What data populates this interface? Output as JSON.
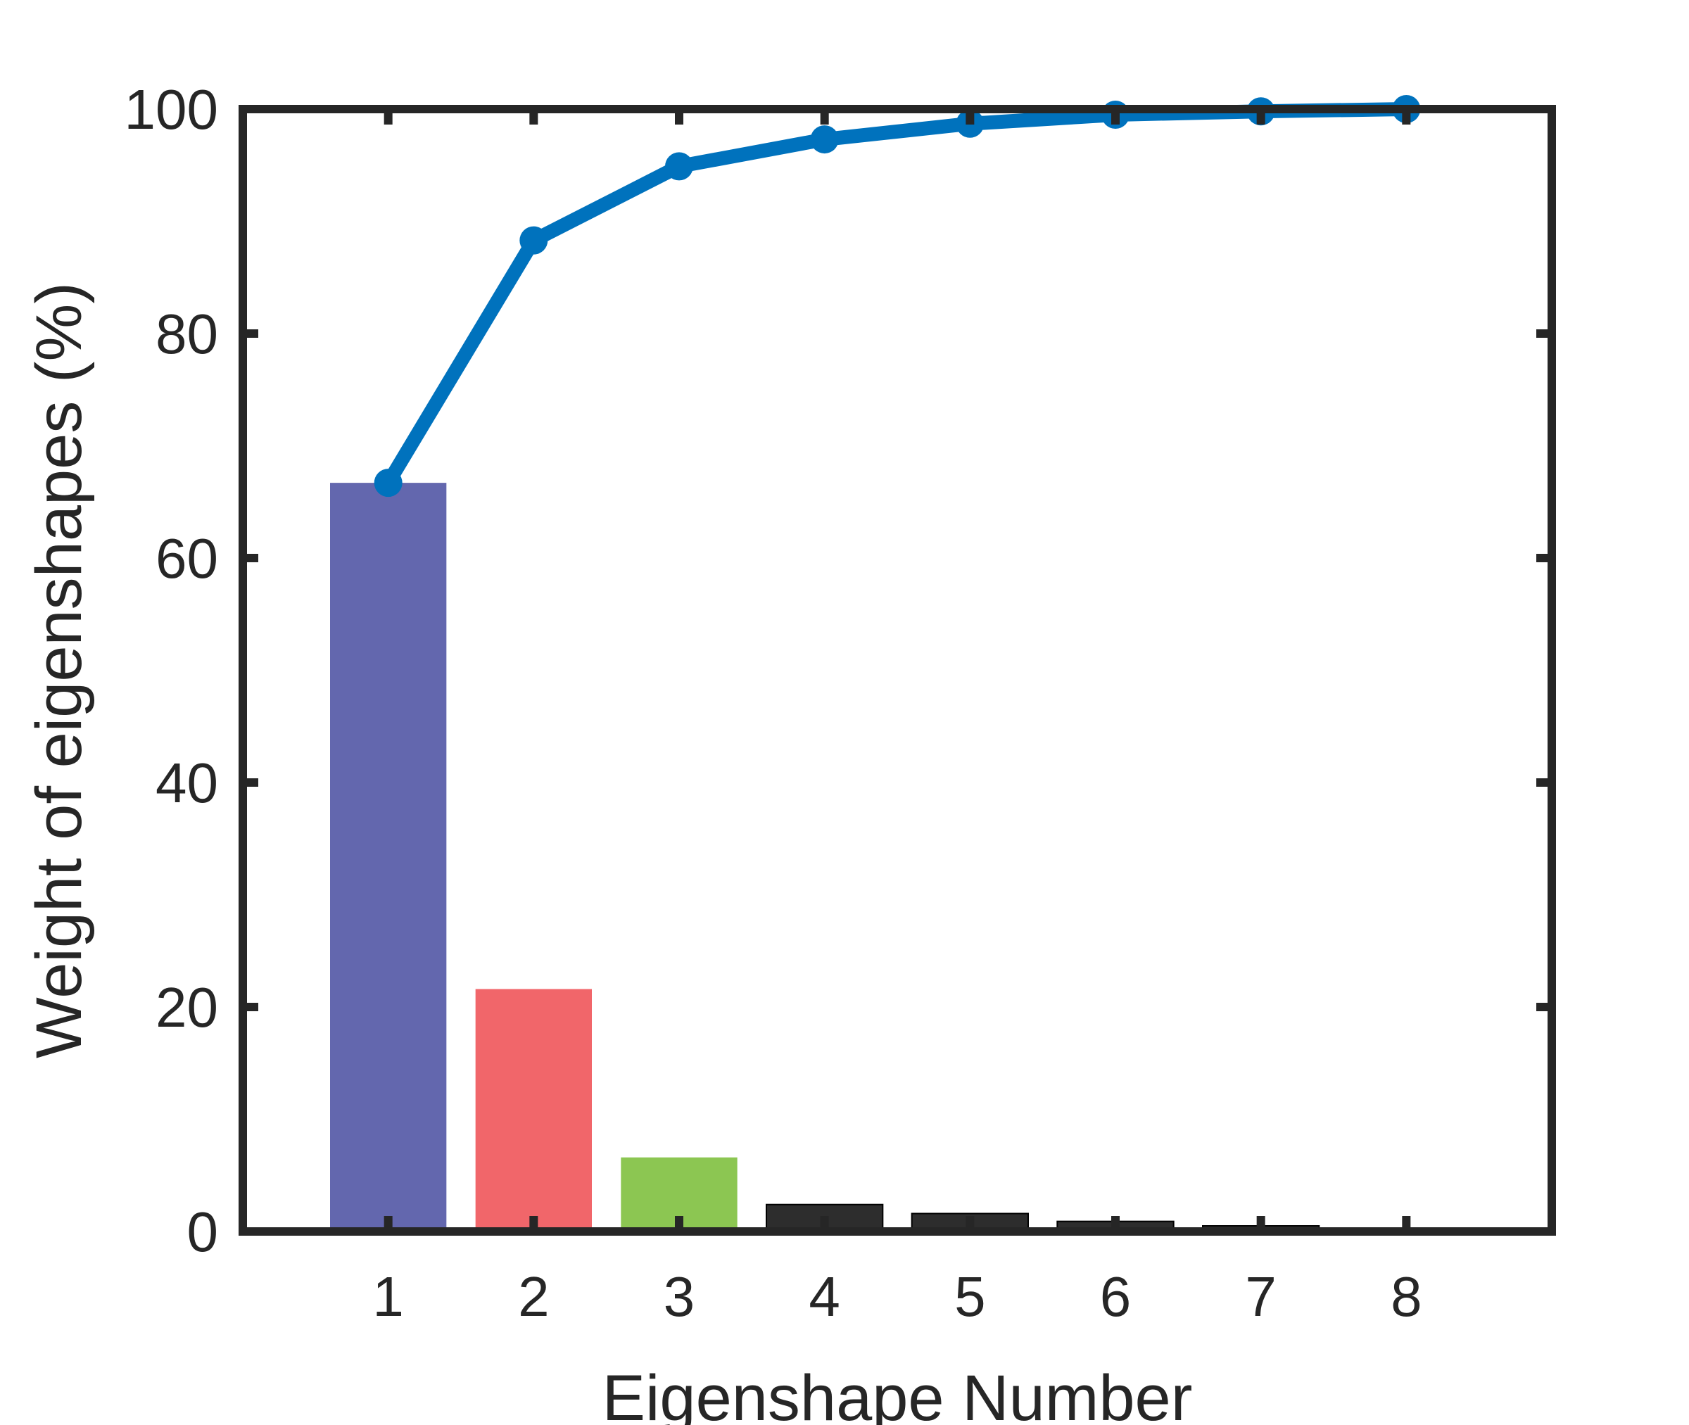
{
  "chart_data": {
    "type": "bar",
    "xlabel": "Eigenshape Number",
    "ylabel": "Weight of eigenshapes (%)",
    "categories": [
      "1",
      "2",
      "3",
      "4",
      "5",
      "6",
      "7",
      "8"
    ],
    "xlim": [
      0,
      9
    ],
    "ylim": [
      0,
      100
    ],
    "yticks": [
      "0",
      "20",
      "40",
      "60",
      "80",
      "100"
    ],
    "grid": false,
    "series": [
      {
        "type": "bar",
        "values": [
          66.7,
          21.6,
          6.6,
          2.4,
          1.6,
          0.9,
          0.5,
          0.3
        ],
        "colors": [
          "#6367ae",
          "#f1666a",
          "#8cc652",
          "#2d2d2d",
          "#2d2d2d",
          "#2d2d2d",
          "#2d2d2d",
          "#2d2d2d"
        ]
      },
      {
        "type": "line",
        "values": [
          66.7,
          88.3,
          94.9,
          97.3,
          98.7,
          99.5,
          99.8,
          100.0
        ],
        "color": "#0072bd",
        "markers": true
      }
    ],
    "axis_color": "#262626"
  }
}
